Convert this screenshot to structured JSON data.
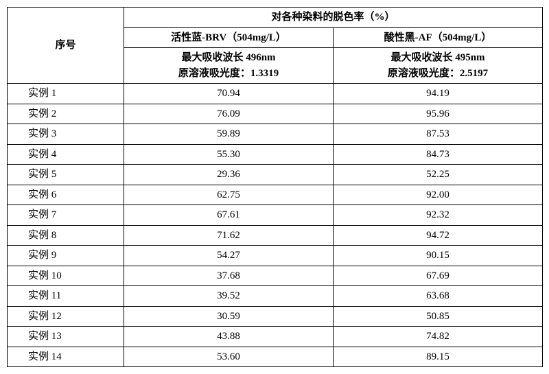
{
  "header": {
    "seq_label": "序号",
    "group_label": "对各种染料的脱色率（%）",
    "dye_a_name": "活性蓝-BRV（504mg/L）",
    "dye_b_name": "酸性黑-AF（504mg/L）",
    "dye_a_sub1": "最大吸收波长 496nm",
    "dye_a_sub2": "原溶液吸光度：1.3319",
    "dye_b_sub1": "最大吸收波长 495nm",
    "dye_b_sub2": "原溶液吸光度：2.5197"
  },
  "rows": [
    {
      "seq": "实例 1",
      "a": "70.94",
      "b": "94.19"
    },
    {
      "seq": "实例 2",
      "a": "76.09",
      "b": "95.96"
    },
    {
      "seq": "实例 3",
      "a": "59.89",
      "b": "87.53"
    },
    {
      "seq": "实例 4",
      "a": "55.30",
      "b": "84.73"
    },
    {
      "seq": "实例 5",
      "a": "29.36",
      "b": "52.25"
    },
    {
      "seq": "实例 6",
      "a": "62.75",
      "b": "92.00"
    },
    {
      "seq": "实例 7",
      "a": "67.61",
      "b": "92.32"
    },
    {
      "seq": "实例 8",
      "a": "71.62",
      "b": "94.72"
    },
    {
      "seq": "实例 9",
      "a": "54.27",
      "b": "90.15"
    },
    {
      "seq": "实例 10",
      "a": "37.68",
      "b": "67.69"
    },
    {
      "seq": "实例 11",
      "a": "39.52",
      "b": "63.68"
    },
    {
      "seq": "实例 12",
      "a": "30.59",
      "b": "50.85"
    },
    {
      "seq": "实例 13",
      "a": "43.88",
      "b": "74.82"
    },
    {
      "seq": "实例 14",
      "a": "53.60",
      "b": "89.15"
    }
  ],
  "style": {
    "border_color": "#000000",
    "background_color": "#ffffff",
    "font_size_pt": 11,
    "font_family": "SimSun"
  }
}
